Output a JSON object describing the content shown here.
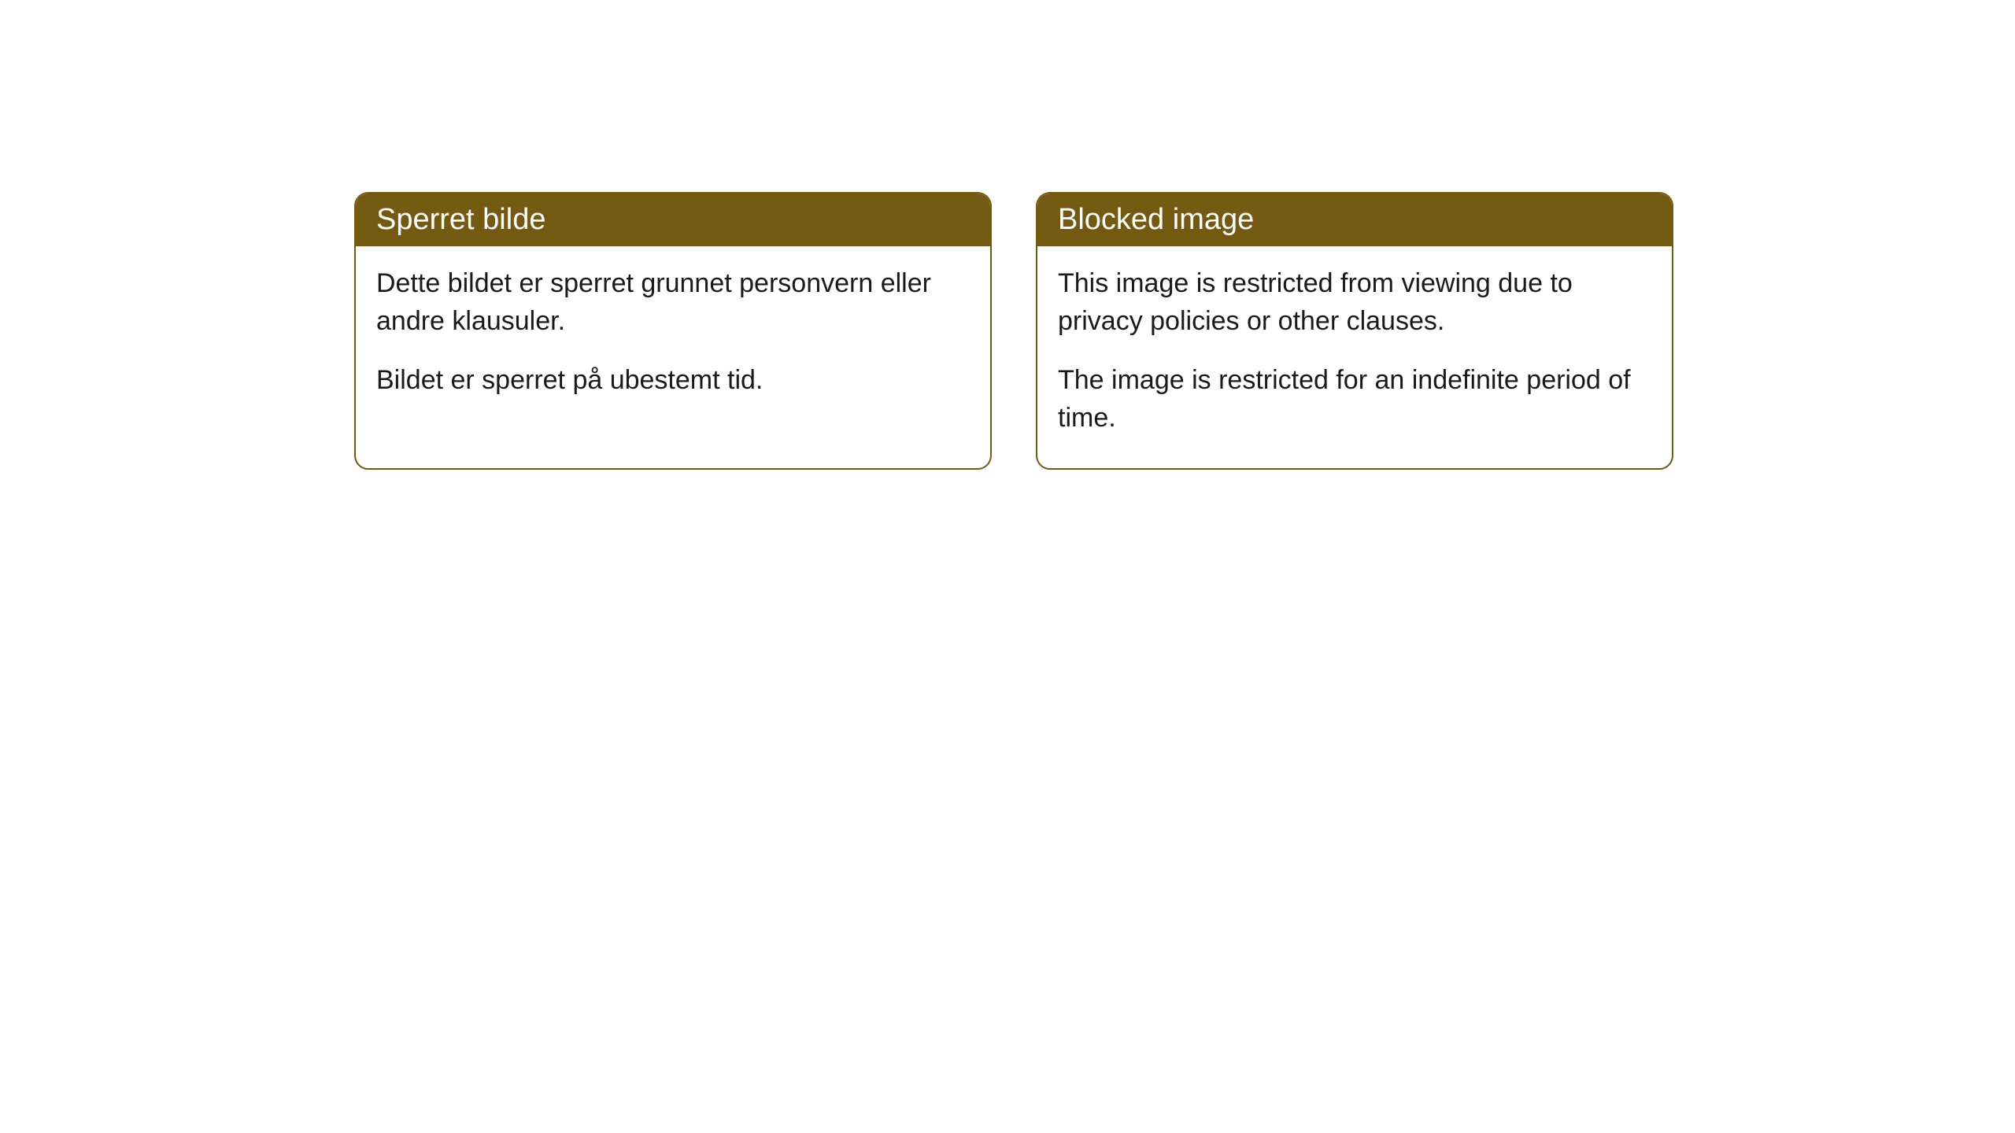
{
  "cards": [
    {
      "title": "Sperret bilde",
      "paragraph1": "Dette bildet er sperret grunnet personvern eller andre klausuler.",
      "paragraph2": "Bildet er sperret på ubestemt tid."
    },
    {
      "title": "Blocked image",
      "paragraph1": "This image is restricted from viewing due to privacy policies or other clauses.",
      "paragraph2": "The image is restricted for an indefinite period of time."
    }
  ],
  "styling": {
    "header_bg_color": "#745a11",
    "header_text_color": "#ffffff",
    "card_border_color": "#745a11",
    "card_bg_color": "#ffffff",
    "body_text_color": "#1a1a1a",
    "page_bg_color": "#ffffff",
    "border_radius": 18,
    "header_fontsize": 38,
    "body_fontsize": 34
  }
}
